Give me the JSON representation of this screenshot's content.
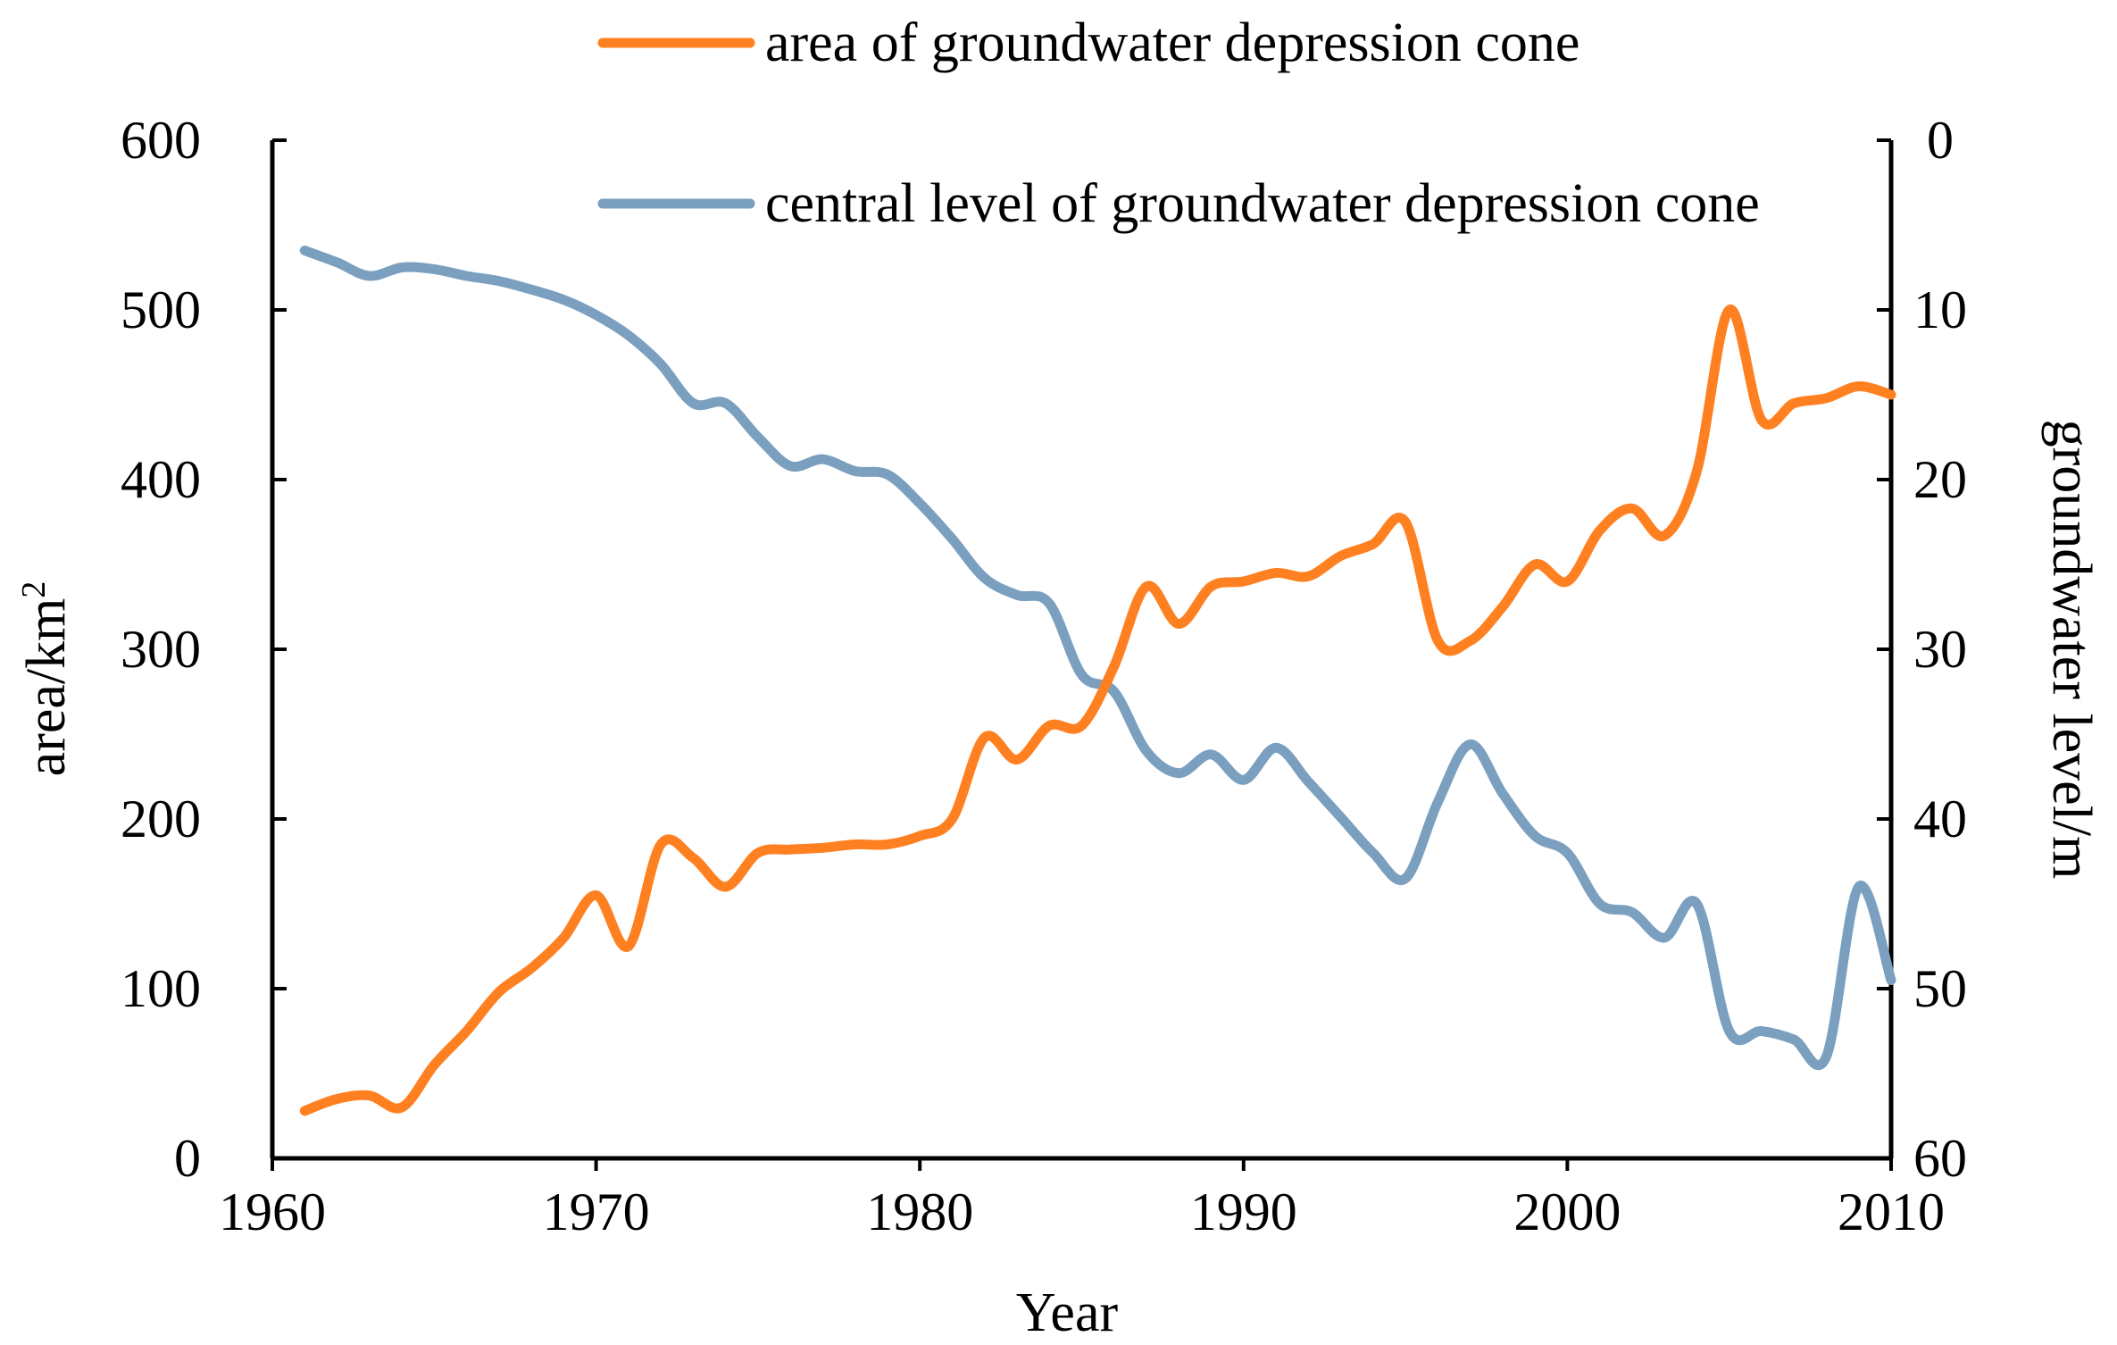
{
  "chart_data": {
    "type": "line",
    "title": "",
    "xlabel": "Year",
    "ylabel_left": "area/km",
    "ylabel_left_sup": "2",
    "ylabel_right": "groundwater level/m",
    "xlim": [
      1960,
      2010
    ],
    "ylim_left": [
      0,
      600
    ],
    "ylim_right": [
      0,
      60
    ],
    "right_axis_inverted": true,
    "x_ticks": [
      "1960",
      "1970",
      "1980",
      "1990",
      "2000",
      "2010"
    ],
    "y_left_ticks": [
      "0",
      "100",
      "200",
      "300",
      "400",
      "500",
      "600"
    ],
    "y_right_ticks": [
      "0",
      "10",
      "20",
      "30",
      "40",
      "50",
      "60"
    ],
    "legend_position": "top",
    "series": [
      {
        "name": "area of groundwater depression cone",
        "axis": "left",
        "color": "#ff8021",
        "x": [
          1961,
          1962,
          1963,
          1964,
          1965,
          1966,
          1967,
          1968,
          1969,
          1970,
          1971,
          1972,
          1973,
          1974,
          1975,
          1976,
          1977,
          1978,
          1979,
          1980,
          1981,
          1982,
          1983,
          1984,
          1985,
          1986,
          1987,
          1988,
          1989,
          1990,
          1991,
          1992,
          1993,
          1994,
          1995,
          1996,
          1997,
          1998,
          1999,
          2000,
          2001,
          2002,
          2003,
          2004,
          2005,
          2006,
          2007,
          2008,
          2009,
          2010
        ],
        "values": [
          28,
          35,
          37,
          30,
          55,
          75,
          98,
          112,
          130,
          155,
          125,
          185,
          177,
          160,
          180,
          182,
          183,
          185,
          185,
          190,
          200,
          248,
          235,
          255,
          255,
          290,
          337,
          315,
          337,
          340,
          345,
          343,
          355,
          362,
          375,
          305,
          305,
          325,
          350,
          340,
          370,
          383,
          367,
          405,
          500,
          435,
          445,
          448,
          455,
          450
        ]
      },
      {
        "name": "central level of groundwater depression cone",
        "axis": "right",
        "color": "#7a9fbf",
        "x": [
          1961,
          1962,
          1963,
          1964,
          1965,
          1966,
          1967,
          1968,
          1969,
          1970,
          1971,
          1972,
          1973,
          1974,
          1975,
          1976,
          1977,
          1978,
          1979,
          1980,
          1981,
          1982,
          1983,
          1984,
          1985,
          1986,
          1987,
          1988,
          1989,
          1990,
          1991,
          1992,
          1993,
          1994,
          1995,
          1996,
          1997,
          1998,
          1999,
          2000,
          2001,
          2002,
          2003,
          2004,
          2005,
          2006,
          2007,
          2008,
          2009,
          2010
        ],
        "values": [
          6.5,
          7.2,
          8.0,
          7.5,
          7.6,
          8.0,
          8.3,
          8.8,
          9.4,
          10.3,
          11.5,
          13.2,
          15.5,
          15.5,
          17.5,
          19.2,
          18.8,
          19.5,
          19.7,
          21.4,
          23.5,
          25.8,
          26.8,
          27.3,
          31.5,
          32.5,
          36.0,
          37.3,
          36.2,
          37.7,
          35.8,
          37.8,
          39.9,
          42.0,
          43.5,
          39.0,
          35.6,
          38.5,
          41.0,
          42.0,
          45.0,
          45.5,
          47.0,
          45.0,
          52.5,
          52.5,
          53.0,
          54.0,
          44.0,
          49.5
        ]
      }
    ]
  }
}
